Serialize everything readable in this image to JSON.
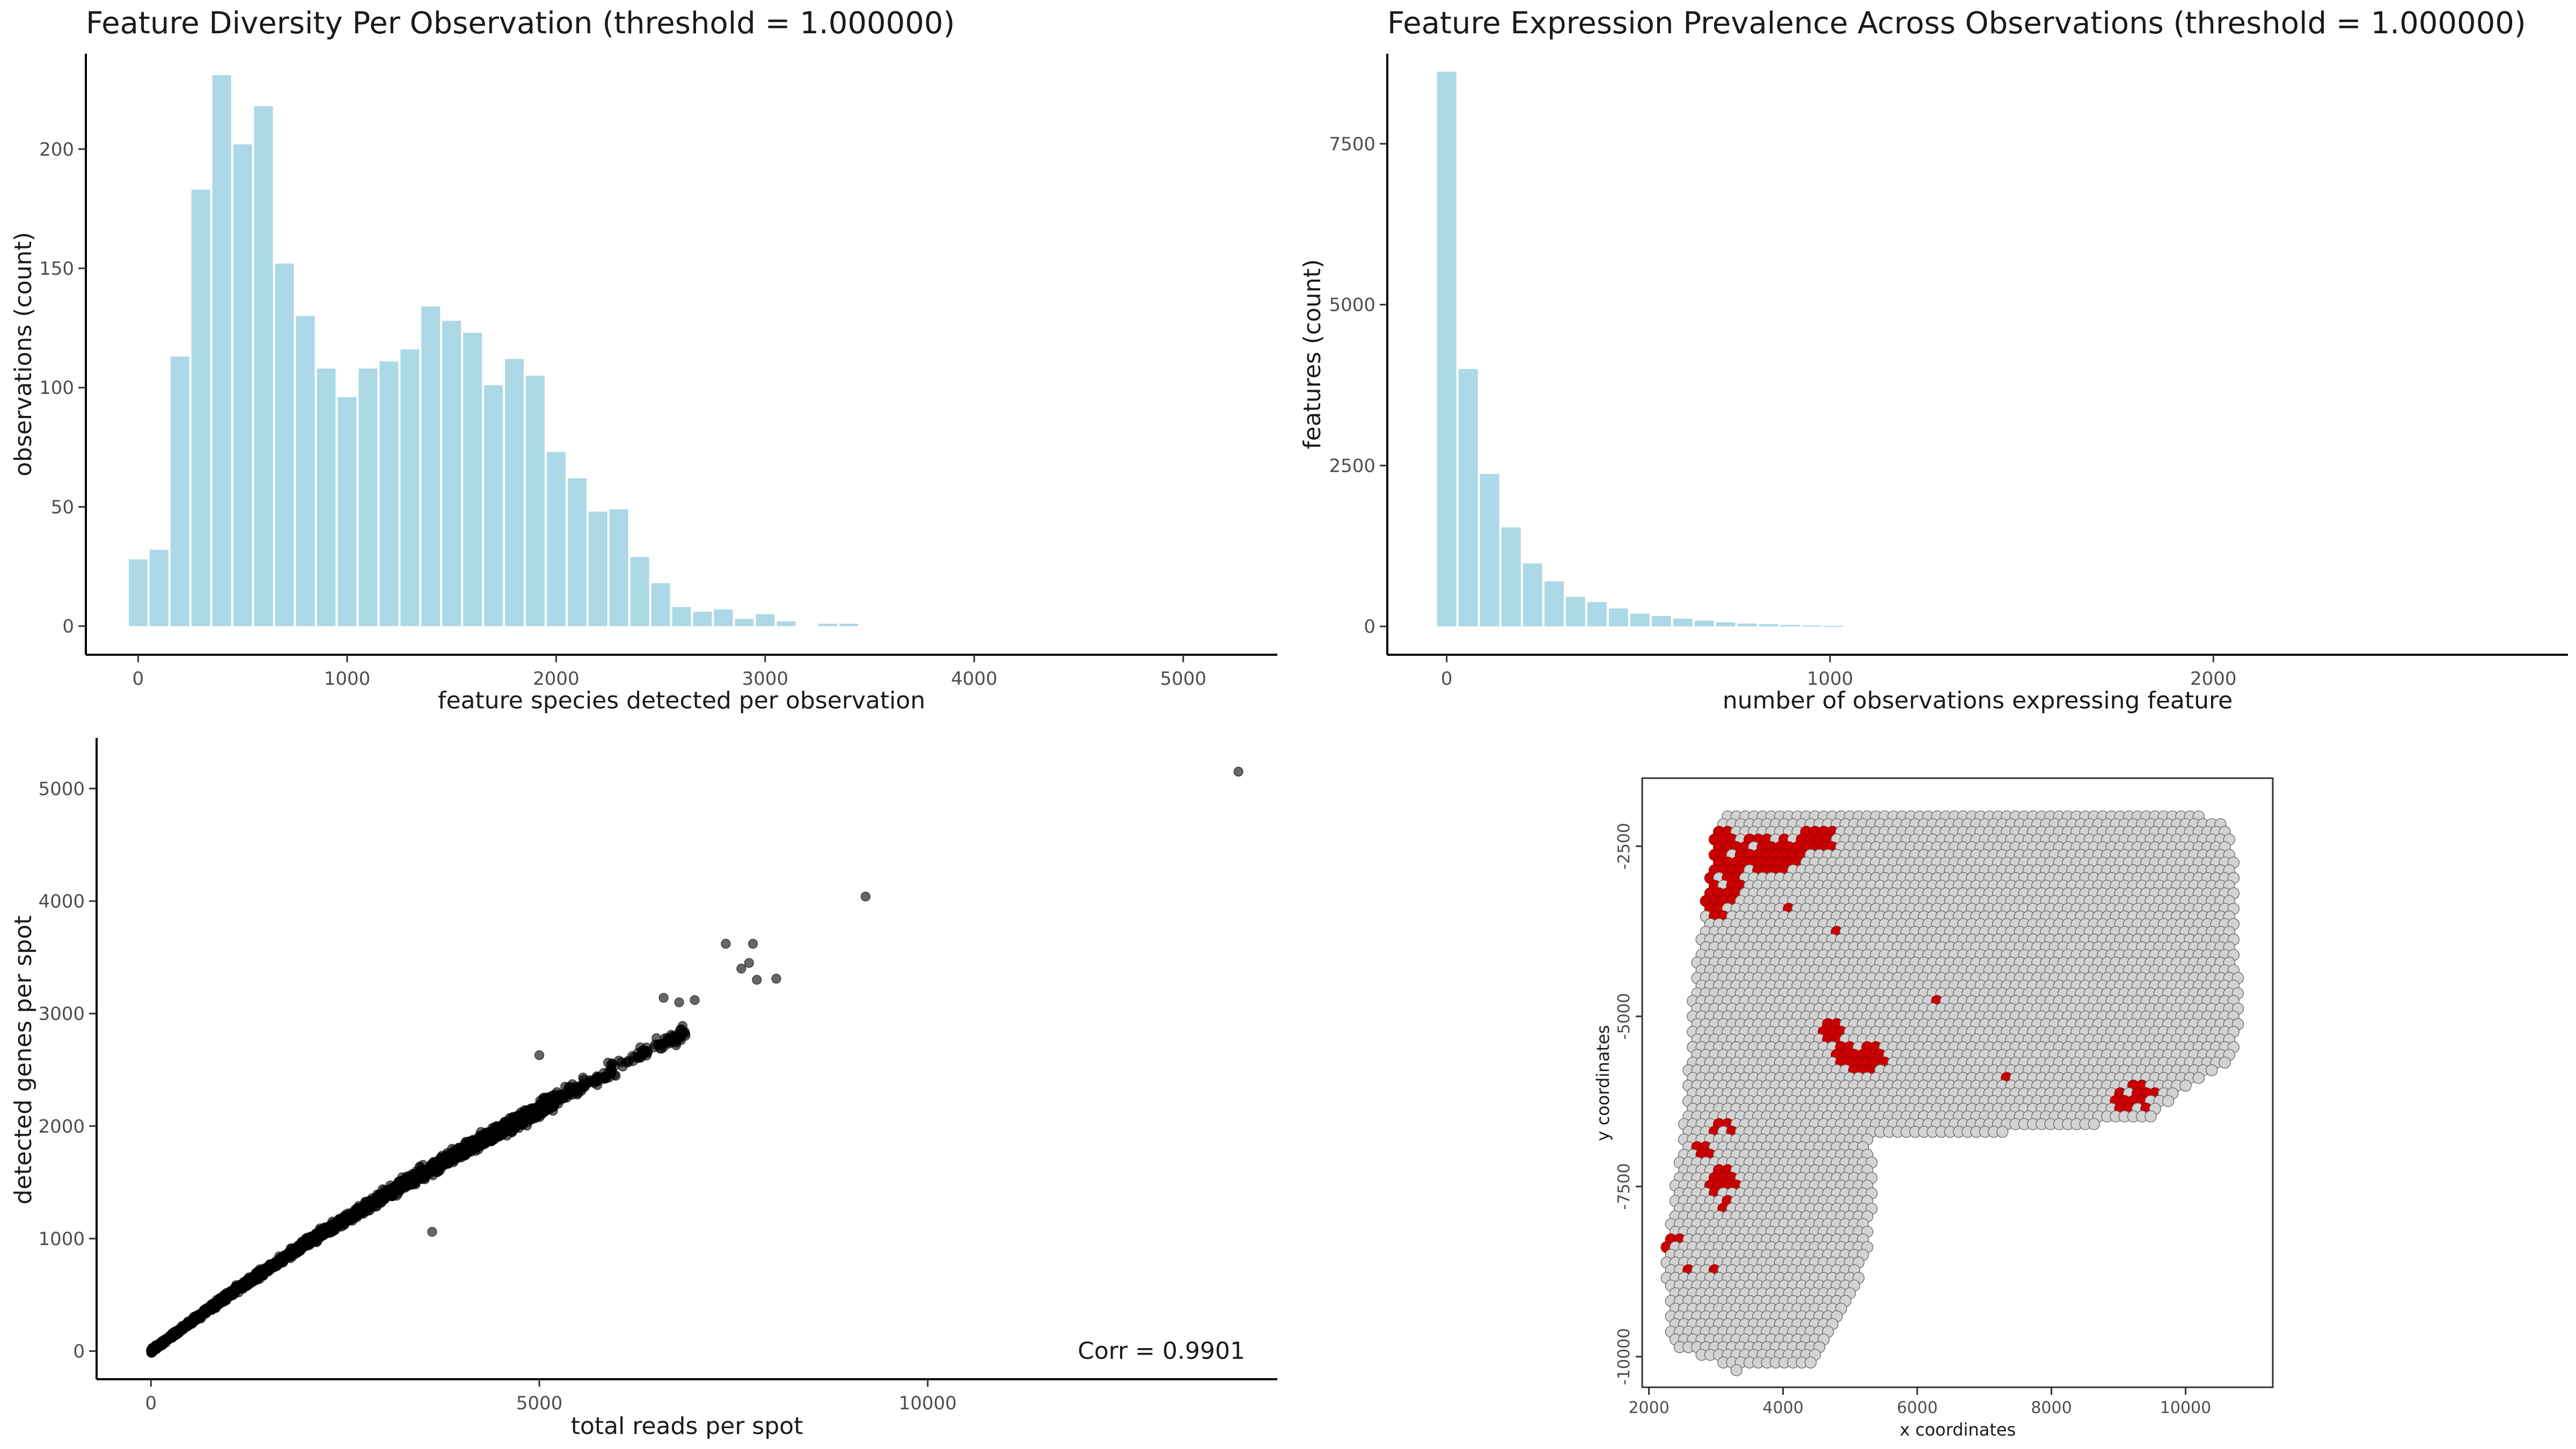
{
  "chart_data": [
    {
      "id": "hist1",
      "type": "bar",
      "title": "Feature Diversity Per Observation (threshold = 1.000000)",
      "xlabel": "feature species detected per observation",
      "ylabel": "observations (count)",
      "xlim": [
        -250,
        5450
      ],
      "ylim": [
        -12,
        240
      ],
      "xticks": [
        0,
        1000,
        2000,
        3000,
        4000,
        5000
      ],
      "yticks": [
        0,
        50,
        100,
        150,
        200
      ],
      "bin_width": 100,
      "bar_color": "#add8e6",
      "x": [
        0,
        100,
        200,
        300,
        400,
        500,
        600,
        700,
        800,
        900,
        1000,
        1100,
        1200,
        1300,
        1400,
        1500,
        1600,
        1700,
        1800,
        1900,
        2000,
        2100,
        2200,
        2300,
        2400,
        2500,
        2600,
        2700,
        2800,
        2900,
        3000,
        3100,
        3200,
        3300,
        3400
      ],
      "values": [
        28,
        32,
        113,
        183,
        231,
        202,
        218,
        152,
        130,
        108,
        96,
        108,
        111,
        116,
        134,
        128,
        123,
        101,
        112,
        105,
        73,
        62,
        48,
        49,
        29,
        18,
        8,
        6,
        7,
        3,
        5,
        2,
        0,
        1,
        1
      ]
    },
    {
      "id": "hist2",
      "type": "bar",
      "title": "Feature Expression Prevalence Across Observations (threshold = 1.000000)",
      "xlabel": "number of observations expressing feature",
      "ylabel": "features (count)",
      "xlim": [
        -155,
        2925
      ],
      "ylim": [
        -440,
        8900
      ],
      "xticks": [
        0,
        1000,
        2000
      ],
      "yticks": [
        0,
        2500,
        5000,
        7500
      ],
      "bin_width": 56,
      "bar_color": "#add8e6",
      "x": [
        0,
        56,
        112,
        168,
        224,
        280,
        336,
        392,
        448,
        504,
        560,
        616,
        672,
        728,
        784,
        840,
        896,
        952,
        1008
      ],
      "values": [
        8620,
        4000,
        2370,
        1540,
        980,
        700,
        460,
        380,
        280,
        200,
        160,
        120,
        90,
        65,
        45,
        35,
        25,
        15,
        10
      ]
    },
    {
      "id": "scatter",
      "type": "scatter",
      "xlabel": "total reads per spot",
      "ylabel": "detected genes per spot",
      "annotation": "Corr = 0.9901",
      "xlim": [
        -700,
        14500
      ],
      "ylim": [
        -250,
        5450
      ],
      "xticks": [
        0,
        5000,
        10000
      ],
      "yticks": [
        0,
        1000,
        2000,
        3000,
        4000,
        5000
      ],
      "point_color": "#000000",
      "outliers": [
        {
          "x": 14000,
          "y": 5150
        },
        {
          "x": 9200,
          "y": 4040
        },
        {
          "x": 7400,
          "y": 3620
        },
        {
          "x": 7600,
          "y": 3400
        },
        {
          "x": 7700,
          "y": 3450
        },
        {
          "x": 7800,
          "y": 3300
        },
        {
          "x": 7750,
          "y": 3620
        },
        {
          "x": 8050,
          "y": 3310
        },
        {
          "x": 6800,
          "y": 3100
        },
        {
          "x": 7000,
          "y": 3120
        },
        {
          "x": 6600,
          "y": 3140
        },
        {
          "x": 3620,
          "y": 1060
        },
        {
          "x": 5000,
          "y": 2630
        }
      ],
      "trend": [
        [
          0,
          0
        ],
        [
          1000,
          500
        ],
        [
          2000,
          960
        ],
        [
          3000,
          1380
        ],
        [
          4000,
          1780
        ],
        [
          5000,
          2150
        ],
        [
          6000,
          2520
        ],
        [
          7000,
          2880
        ]
      ]
    },
    {
      "id": "spatial",
      "type": "scatter",
      "xlabel": "x coordinates",
      "ylabel": "y coordinates",
      "xlim": [
        1900,
        11300
      ],
      "ylim": [
        -10450,
        -1500
      ],
      "xticks": [
        2000,
        4000,
        6000,
        8000,
        10000
      ],
      "yticks": [
        -2500,
        -5000,
        -7500,
        -10000
      ],
      "spot_color": "#d3d3d3",
      "highlight_color": "#cc0000"
    }
  ]
}
